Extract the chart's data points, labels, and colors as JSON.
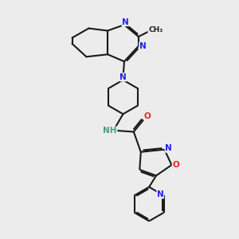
{
  "bg_color": "#ececec",
  "bond_color": "#1a1a1a",
  "n_color": "#2020ee",
  "o_color": "#ee2020",
  "nh_color": "#4a9a8a",
  "figsize": [
    3.0,
    3.0
  ],
  "dpi": 100,
  "xlim": [
    0,
    10
  ],
  "ylim": [
    0,
    10
  ]
}
